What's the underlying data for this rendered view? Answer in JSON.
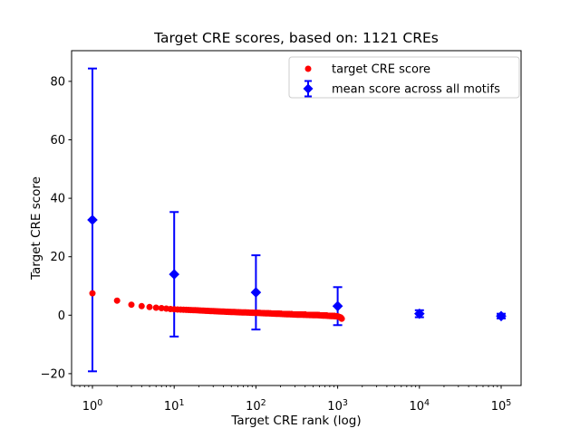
{
  "title": "Target CRE scores, based on: 1121 CREs",
  "chart_data": {
    "type": "scatter",
    "title": "Target CRE scores, based on: 1121 CREs",
    "xlabel": "Target CRE rank (log)",
    "ylabel": "Target CRE score",
    "x_scale": "log",
    "xlim": [
      0.56,
      178000
    ],
    "ylim": [
      -23.9,
      90.4
    ],
    "x_ticks": [
      1,
      10,
      100,
      1000,
      10000,
      100000
    ],
    "y_ticks": [
      -20,
      0,
      20,
      40,
      60,
      80
    ],
    "grid": false,
    "legend": {
      "position": "upper right",
      "entries": [
        {
          "label": "target CRE score",
          "marker": "circle",
          "color": "#ff0000"
        },
        {
          "label": "mean score across all motifs",
          "marker": "diamond-errorbar",
          "color": "#0000ff"
        }
      ]
    },
    "series": [
      {
        "name": "target CRE score",
        "type": "scatter",
        "marker": "circle",
        "color": "#ff0000",
        "n_points": 1121,
        "note": "1121 CREs ranked by score; values sampled from plot, log-interpolated between anchors",
        "anchor_ranks": [
          1,
          2,
          3,
          4,
          5,
          7,
          10,
          18,
          32,
          56,
          100,
          178,
          316,
          562,
          1000,
          1090,
          1121
        ],
        "anchor_scores": [
          7.5,
          5.0,
          3.6,
          3.1,
          2.8,
          2.4,
          2.0,
          1.7,
          1.35,
          1.05,
          0.8,
          0.5,
          0.2,
          0.0,
          -0.4,
          -0.8,
          -1.2
        ]
      },
      {
        "name": "mean score across all motifs",
        "type": "errorbar-scatter",
        "marker": "diamond",
        "color": "#0000ff",
        "x": [
          1,
          10,
          100,
          1000,
          10000,
          100000
        ],
        "y": [
          32.6,
          14.0,
          7.8,
          3.1,
          0.5,
          -0.3
        ],
        "yerr": [
          51.8,
          21.3,
          12.7,
          6.5,
          1.2,
          0.8
        ]
      }
    ],
    "colors": {
      "target": "#ff0000",
      "mean": "#0000ff",
      "axis": "#000000",
      "legend_border": "#cccccc"
    }
  }
}
